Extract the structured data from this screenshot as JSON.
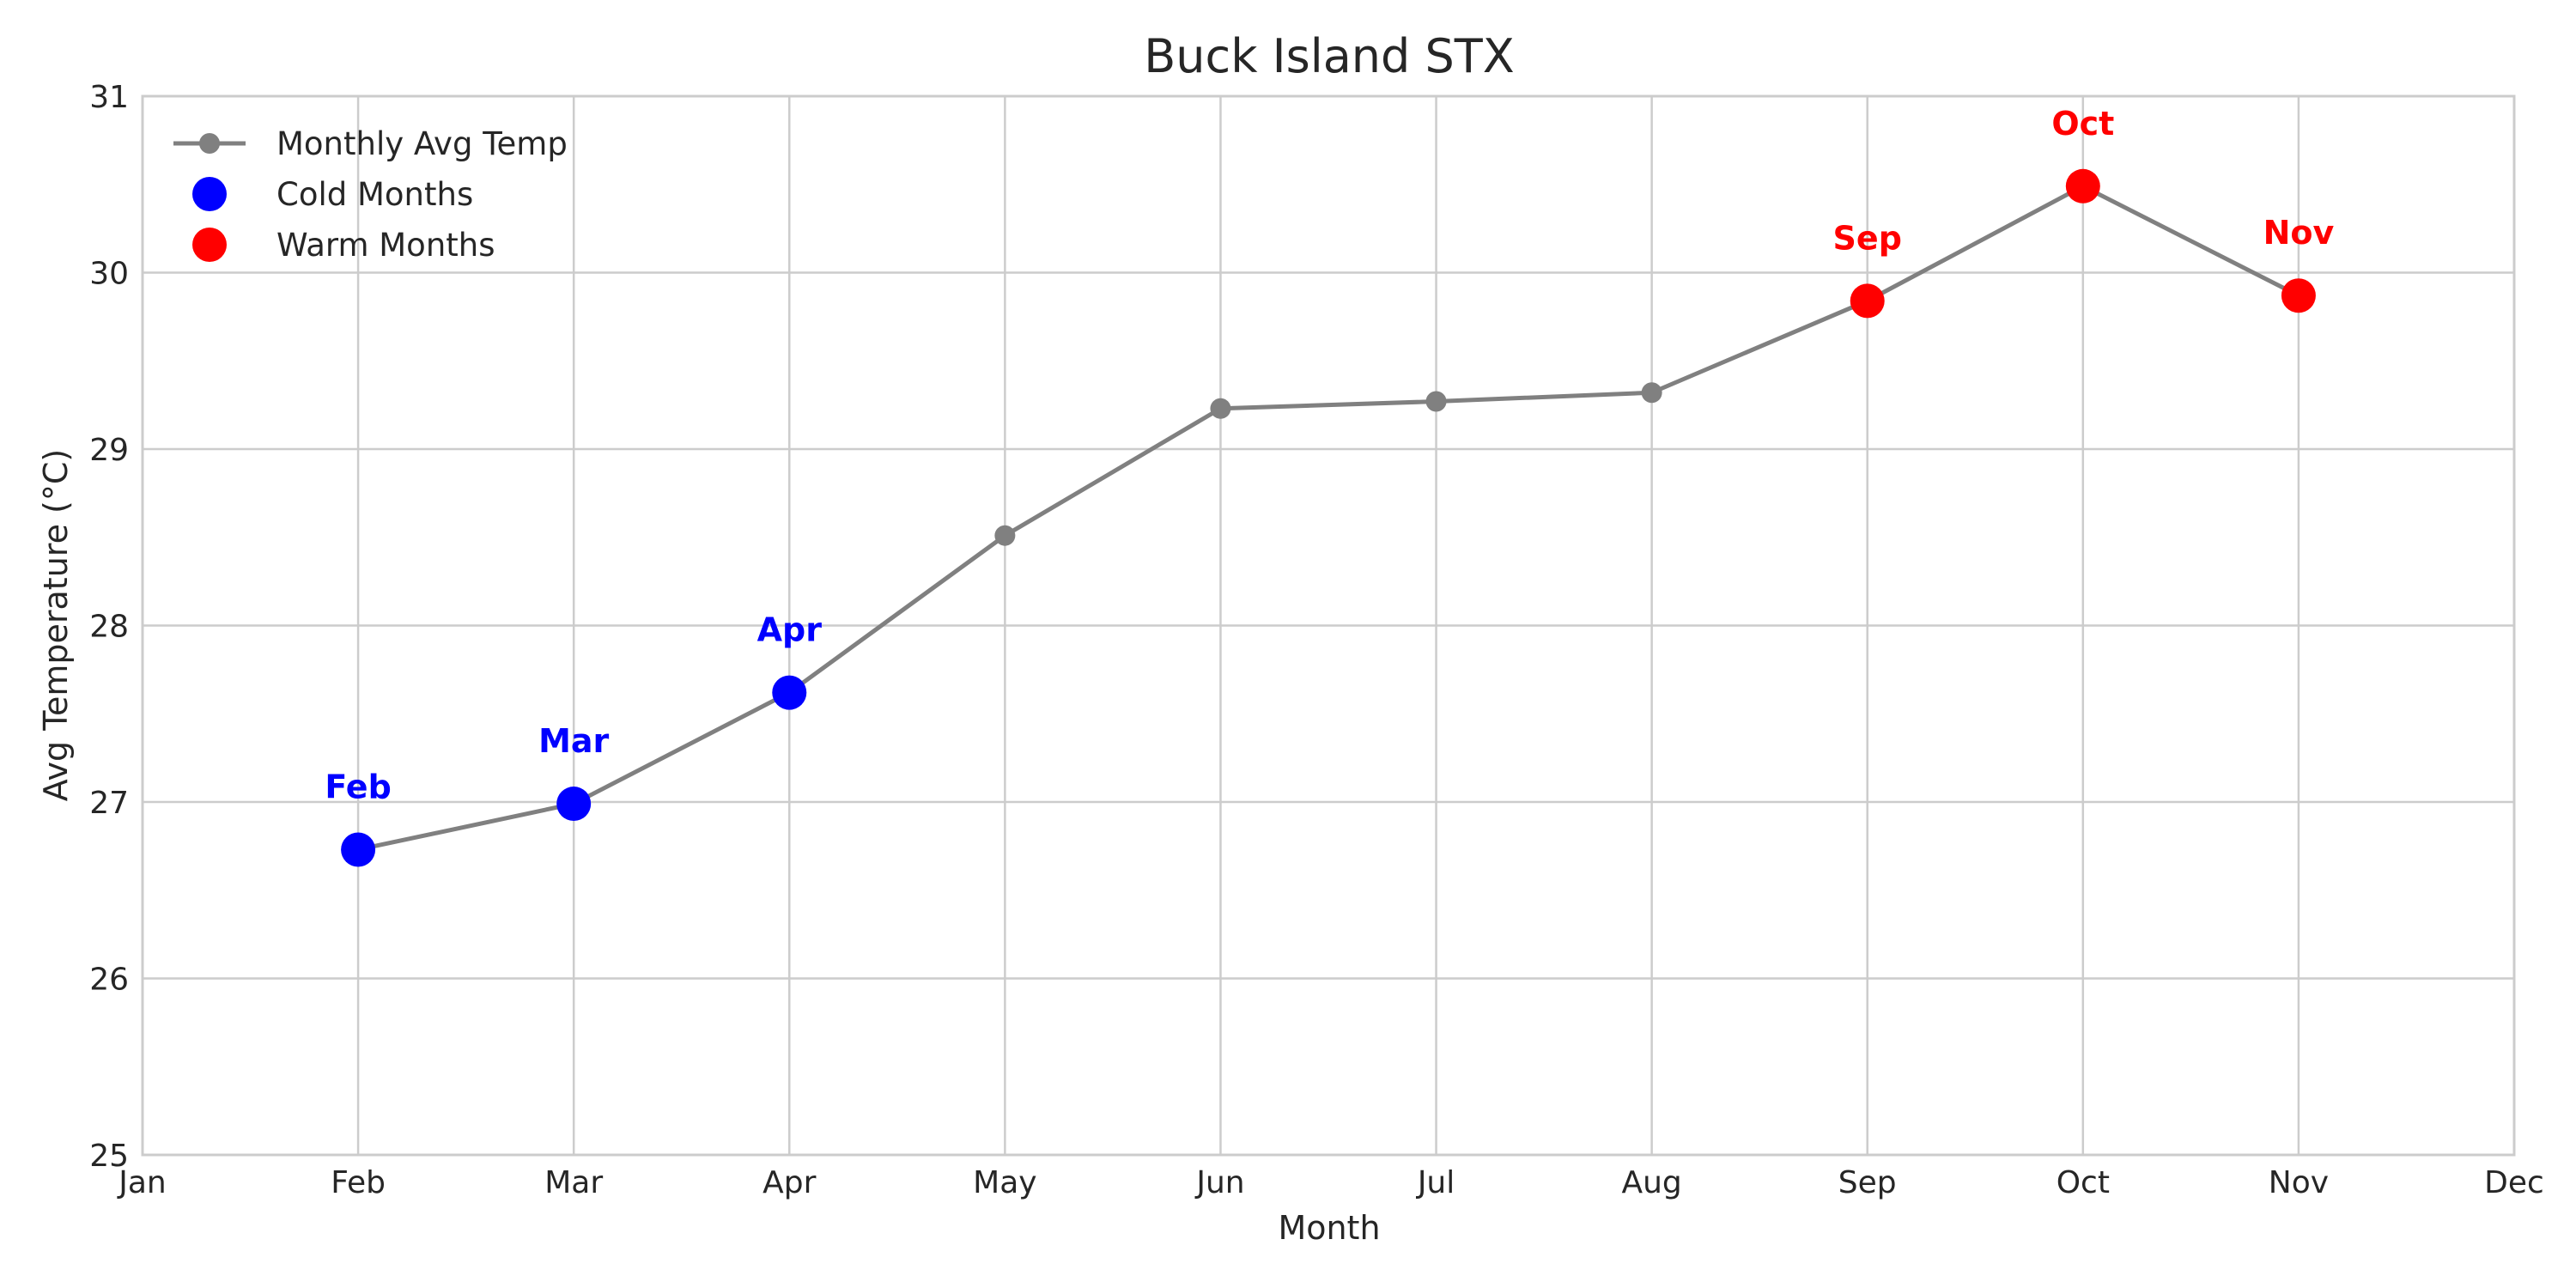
{
  "chart_data": {
    "type": "line",
    "title": "Buck Island STX",
    "xlabel": "Month",
    "ylabel": "Avg Temperature (°C)",
    "categories": [
      "Jan",
      "Feb",
      "Mar",
      "Apr",
      "May",
      "Jun",
      "Jul",
      "Aug",
      "Sep",
      "Oct",
      "Nov",
      "Dec"
    ],
    "ylim": [
      25,
      31
    ],
    "yticks": [
      25,
      26,
      27,
      28,
      29,
      30,
      31
    ],
    "grid": true,
    "legend_position": "top-left",
    "series": [
      {
        "name": "Monthly Avg Temp",
        "color": "#808080",
        "marker": "circle",
        "points": [
          {
            "x": "Feb",
            "y": 26.73
          },
          {
            "x": "Mar",
            "y": 26.99
          },
          {
            "x": "Apr",
            "y": 27.62
          },
          {
            "x": "May",
            "y": 28.51
          },
          {
            "x": "Jun",
            "y": 29.23
          },
          {
            "x": "Jul",
            "y": 29.27
          },
          {
            "x": "Aug",
            "y": 29.32
          },
          {
            "x": "Sep",
            "y": 29.84
          },
          {
            "x": "Oct",
            "y": 30.49
          },
          {
            "x": "Nov",
            "y": 29.87
          }
        ]
      },
      {
        "name": "Cold Months",
        "color": "#0000ff",
        "marker": "circle",
        "points": [
          {
            "x": "Feb",
            "y": 26.73,
            "label": "Feb"
          },
          {
            "x": "Mar",
            "y": 26.99,
            "label": "Mar"
          },
          {
            "x": "Apr",
            "y": 27.62,
            "label": "Apr"
          }
        ]
      },
      {
        "name": "Warm Months",
        "color": "#ff0000",
        "marker": "circle",
        "points": [
          {
            "x": "Sep",
            "y": 29.84,
            "label": "Sep"
          },
          {
            "x": "Oct",
            "y": 30.49,
            "label": "Oct"
          },
          {
            "x": "Nov",
            "y": 29.87,
            "label": "Nov"
          }
        ]
      }
    ]
  }
}
